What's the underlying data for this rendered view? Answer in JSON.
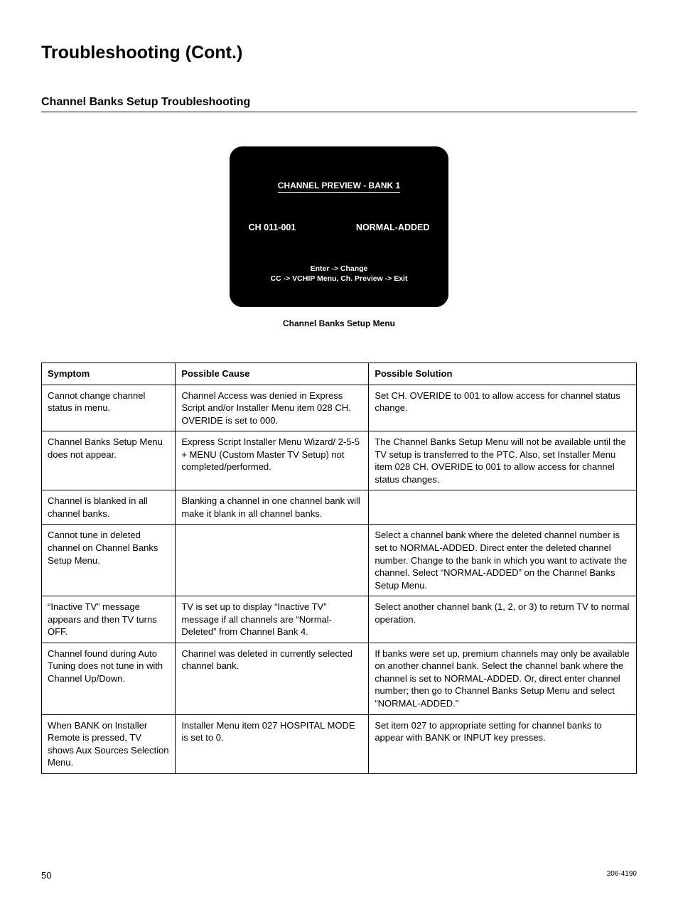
{
  "page_title": "Troubleshooting (Cont.)",
  "section_title": "Channel Banks Setup Troubleshooting",
  "tv_screen": {
    "title": "CHANNEL PREVIEW - BANK 1",
    "channel_label": "CH 011-001",
    "status_label": "NORMAL-ADDED",
    "instruction_line1": "Enter -> Change",
    "instruction_line2": "CC -> VCHIP Menu,  Ch. Preview -> Exit"
  },
  "tv_caption": "Channel Banks Setup Menu",
  "table": {
    "headers": {
      "symptom": "Symptom",
      "cause": "Possible Cause",
      "solution": "Possible Solution"
    },
    "rows": [
      {
        "symptom": "Cannot change channel status in menu.",
        "cause": "Channel Access was denied in Express Script and/or Installer Menu item 028 CH. OVERIDE is set to 000.",
        "solution": "Set CH. OVERIDE to 001 to allow access for channel status change."
      },
      {
        "symptom": "Channel Banks Setup Menu does not appear.",
        "cause": "Express Script Installer Menu Wizard/ 2-5-5 + MENU (Custom Master TV Setup) not completed/performed.",
        "solution": "The Channel Banks Setup Menu will not be available until the TV setup is transferred to the PTC. Also, set Installer Menu item 028 CH. OVERIDE to 001 to allow access for channel status changes."
      },
      {
        "symptom": "Channel is blanked in all channel banks.",
        "cause": "Blanking a channel in one channel bank will make it blank in all channel banks.",
        "solution": ""
      },
      {
        "symptom": "Cannot tune in deleted channel on Channel Banks Setup Menu.",
        "cause": "",
        "solution": "Select a channel bank where the deleted channel number is set to NORMAL-ADDED. Direct enter the deleted channel number. Change to the bank in which you want to activate the channel. Select “NORMAL-ADDED” on the Channel Banks Setup Menu."
      },
      {
        "symptom": "“Inactive TV” message appears and then TV turns OFF.",
        "cause": "TV is set up to display “Inactive TV” message if all channels are “Normal-Deleted” from Channel Bank 4.",
        "solution": "Select another channel bank (1, 2, or 3) to return TV to normal operation."
      },
      {
        "symptom": "Channel found during Auto Tuning does not tune in with Channel Up/Down.",
        "cause": "Channel was deleted in currently selected channel bank.",
        "solution": "If banks were set up, premium channels may only be available on another channel bank. Select the channel bank where the channel is set to NORMAL-ADDED. Or, direct enter channel number; then go to Channel Banks Setup Menu and select “NORMAL-ADDED.”"
      },
      {
        "symptom": "When BANK on Installer Remote is pressed, TV shows Aux Sources Selection Menu.",
        "cause": "Installer Menu item 027 HOSPITAL MODE is set to 0.",
        "solution": "Set item 027 to appropriate setting for channel banks to appear with BANK or INPUT key presses."
      }
    ]
  },
  "footer": {
    "page_number": "50",
    "doc_ref": "206-4190"
  }
}
